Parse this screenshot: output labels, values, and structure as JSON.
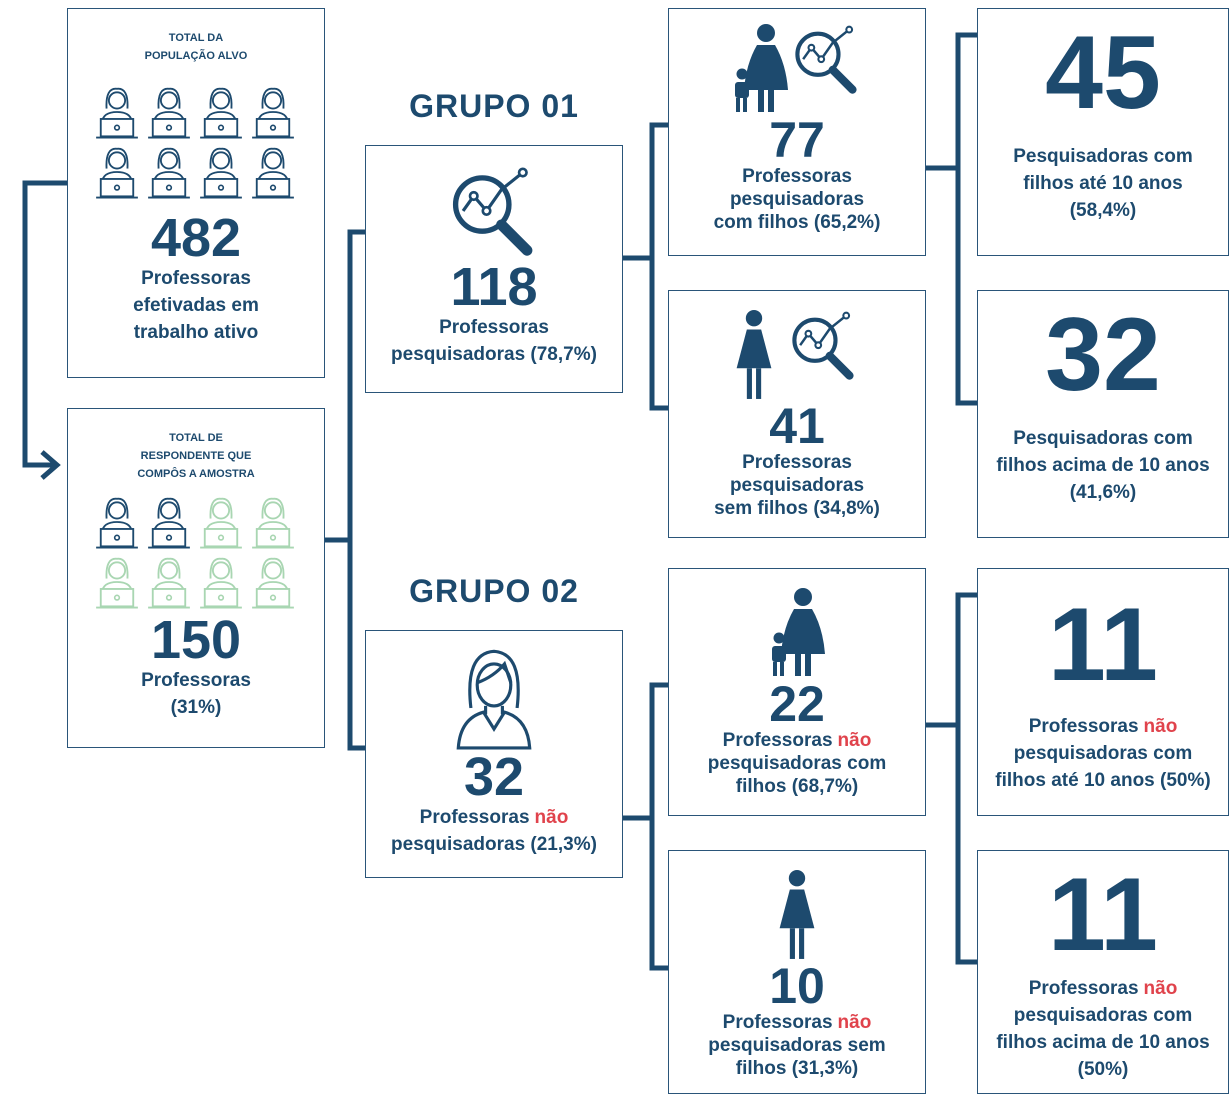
{
  "population": {
    "label_lines": [
      "TOTAL DA",
      "POPULAÇÃO ALVO"
    ],
    "number": 482,
    "text_lines": [
      "Professoras",
      "efetivadas em",
      "trabalho ativo"
    ]
  },
  "sample": {
    "label_lines": [
      "TOTAL DE",
      "RESPONDENTE QUE",
      "COMPÔS A AMOSTRA"
    ],
    "number": 150,
    "text_lines": [
      "Professoras",
      "(31%)"
    ]
  },
  "groups": [
    {
      "title": "GRUPO 01",
      "number": 118,
      "text_lines": [
        "Professoras",
        "pesquisadoras (78,7%)"
      ]
    },
    {
      "title": "GRUPO 02",
      "number": 32,
      "text_lines": [
        {
          "text": "Professoras",
          "highlight": "não"
        },
        "pesquisadoras (21,3%)"
      ]
    }
  ],
  "subgroups": [
    {
      "number": 77,
      "text_lines": [
        "Professoras",
        "pesquisadoras",
        "com filhos (65,2%)"
      ]
    },
    {
      "number": 41,
      "text_lines": [
        "Professoras",
        "pesquisadoras",
        "sem filhos (34,8%)"
      ]
    },
    {
      "number": 22,
      "text_lines": [
        {
          "text": "Professoras",
          "highlight": "não"
        },
        "pesquisadoras com",
        "filhos (68,7%)"
      ]
    },
    {
      "number": 10,
      "text_lines": [
        {
          "text": "Professoras",
          "highlight": "não"
        },
        "pesquisadoras sem",
        "filhos (31,3%)"
      ]
    }
  ],
  "age_groups": [
    {
      "number": 45,
      "text_lines": [
        "Pesquisadoras com",
        "filhos até 10 anos",
        "(58,4%)"
      ]
    },
    {
      "number": 32,
      "text_lines": [
        "Pesquisadoras com",
        "filhos acima de 10 anos",
        "(41,6%)"
      ]
    },
    {
      "number": 11,
      "text_lines": [
        {
          "text": "Professoras",
          "highlight": "não"
        },
        "pesquisadoras com",
        "filhos até 10 anos (50%)"
      ]
    },
    {
      "number": 11,
      "text_lines": [
        {
          "text": "Professoras",
          "highlight": "não"
        },
        "pesquisadoras com",
        "filhos acima de 10 anos",
        "(50%)"
      ]
    }
  ]
}
